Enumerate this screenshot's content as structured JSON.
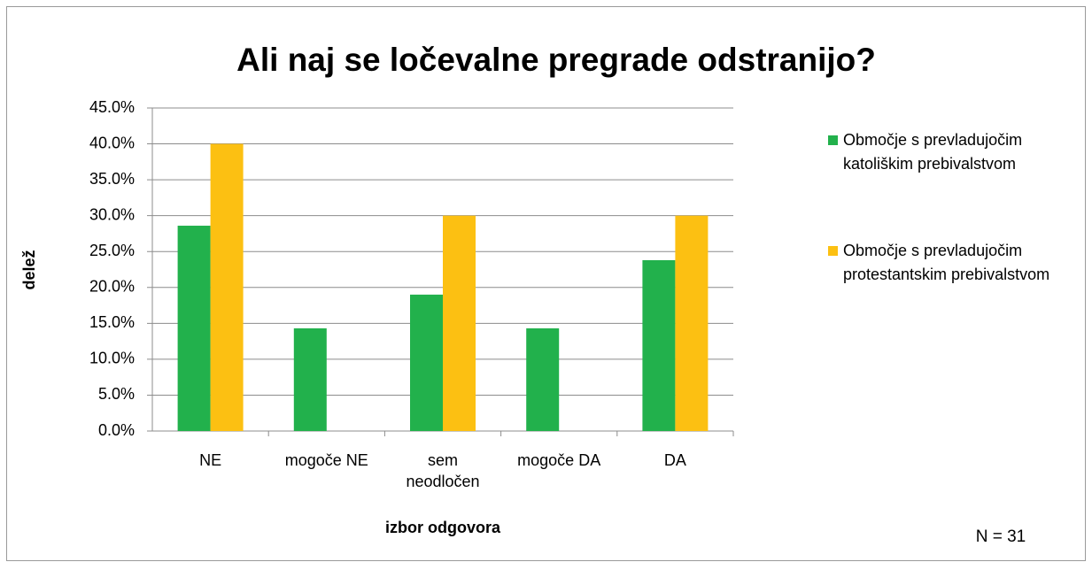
{
  "chart_data": {
    "type": "bar",
    "title": "Ali naj se ločevalne pregrade odstranijo?",
    "x_label": "izbor odgovora",
    "y_label": "delež",
    "annotation": "N = 31",
    "categories": [
      "NE",
      "mogoče NE",
      "sem neodločen",
      "mogoče DA",
      "DA"
    ],
    "series": [
      {
        "name": "Območje s prevladujočim katoliškim prebivalstvom",
        "color": "#22b14c",
        "values": [
          28.6,
          14.3,
          19.0,
          14.3,
          23.8
        ]
      },
      {
        "name": "Območje s prevladujočim protestantskim prebivalstvom",
        "color": "#fcc012",
        "values": [
          40.0,
          0,
          30.0,
          0,
          30.0
        ]
      }
    ],
    "ylim": [
      0,
      45
    ],
    "yticks": [
      {
        "value": 0,
        "label": "0.0%"
      },
      {
        "value": 5,
        "label": "5.0%"
      },
      {
        "value": 10,
        "label": "10.0%"
      },
      {
        "value": 15,
        "label": "15.0%"
      },
      {
        "value": 20,
        "label": "20.0%"
      },
      {
        "value": 25,
        "label": "25.0%"
      },
      {
        "value": 30,
        "label": "30.0%"
      },
      {
        "value": 35,
        "label": "35.0%"
      },
      {
        "value": 40,
        "label": "40.0%"
      },
      {
        "value": 45,
        "label": "45.0%"
      }
    ],
    "grid": true,
    "legend": "right"
  }
}
